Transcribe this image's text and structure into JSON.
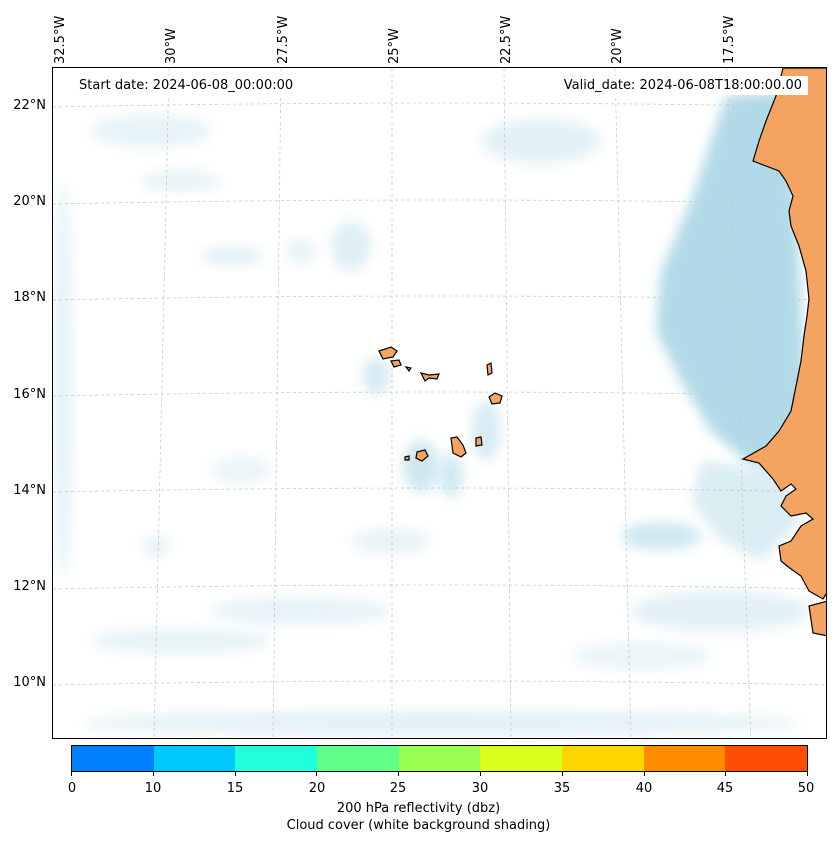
{
  "header": {
    "start_date": "Start date: 2024-06-08_00:00:00",
    "valid_date": "Valid_date: 2024-06-08T18:00:00.00"
  },
  "axes": {
    "longitude_labels": [
      "32.5°W",
      "30°W",
      "27.5°W",
      "25°W",
      "22.5°W",
      "20°W",
      "17.5°W"
    ],
    "latitude_labels": [
      "22°N",
      "20°N",
      "18°N",
      "16°N",
      "14°N",
      "12°N",
      "10°N"
    ]
  },
  "colorbar": {
    "ticks": [
      "0",
      "10",
      "15",
      "20",
      "25",
      "30",
      "35",
      "40",
      "45",
      "50"
    ],
    "colors": [
      "#0080ff",
      "#00c8ff",
      "#20ffd9",
      "#60ff8a",
      "#9aff50",
      "#d9ff1a",
      "#ffd600",
      "#ff8c00",
      "#ff4d00"
    ],
    "label_line1": "200 hPa reflectivity (dbz)",
    "label_line2": "Cloud cover (white background shading)"
  },
  "map_colors": {
    "land": "#f4a460",
    "cloud": "#add8e6",
    "coastline": "#000000",
    "gridline": "#c8c8c8"
  }
}
